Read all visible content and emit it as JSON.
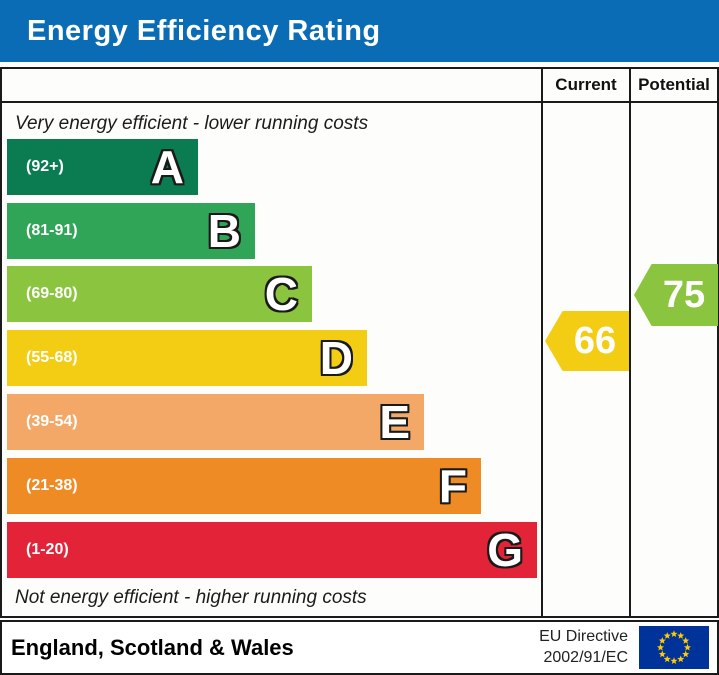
{
  "header": {
    "title": "Energy Efficiency Rating",
    "banner_bg": "#0a6cb4"
  },
  "table": {
    "columns": {
      "current": "Current",
      "potential": "Potential"
    },
    "caption_top": "Very energy efficient - lower running costs",
    "caption_bottom": "Not energy efficient - higher running costs",
    "bands": [
      {
        "letter": "A",
        "range_label": "(92+)",
        "color": "#0b7c51"
      },
      {
        "letter": "B",
        "range_label": "(81-91)",
        "color": "#30a457"
      },
      {
        "letter": "C",
        "range_label": "(69-80)",
        "color": "#8bc53f"
      },
      {
        "letter": "D",
        "range_label": "(55-68)",
        "color": "#f3cd13"
      },
      {
        "letter": "E",
        "range_label": "(39-54)",
        "color": "#f3a868"
      },
      {
        "letter": "F",
        "range_label": "(21-38)",
        "color": "#ee8b24"
      },
      {
        "letter": "G",
        "range_label": "(1-20)",
        "color": "#e32438"
      }
    ],
    "current": {
      "value": "66",
      "band": "D",
      "color": "#f3cd13"
    },
    "potential": {
      "value": "75",
      "band": "C",
      "color": "#8bc53f"
    }
  },
  "footer": {
    "region": "England, Scotland & Wales",
    "directive_line1": "EU Directive",
    "directive_line2": "2002/91/EC",
    "eu_flag": {
      "bg": "#003399",
      "star": "#ffcc00"
    }
  },
  "chart_data": {
    "type": "bar",
    "title": "Energy Efficiency Rating",
    "categories": [
      "A",
      "B",
      "C",
      "D",
      "E",
      "F",
      "G"
    ],
    "band_ranges": [
      "92+",
      "81-91",
      "69-80",
      "55-68",
      "39-54",
      "21-38",
      "1-20"
    ],
    "band_colors": [
      "#0b7c51",
      "#30a457",
      "#8bc53f",
      "#f3cd13",
      "#f3a868",
      "#ee8b24",
      "#e32438"
    ],
    "bar_relative_lengths": [
      1,
      2,
      3,
      4,
      5,
      6,
      7
    ],
    "series": [
      {
        "name": "Current",
        "values": [
          66
        ],
        "band": "D",
        "color": "#f3cd13"
      },
      {
        "name": "Potential",
        "values": [
          75
        ],
        "band": "C",
        "color": "#8bc53f"
      }
    ],
    "annotations": [
      "Very energy efficient - lower running costs",
      "Not energy efficient - higher running costs"
    ],
    "legend_position": "top-right-columns",
    "column_headers": [
      "Current",
      "Potential"
    ],
    "footer_text": "England, Scotland & Wales — EU Directive 2002/91/EC"
  }
}
